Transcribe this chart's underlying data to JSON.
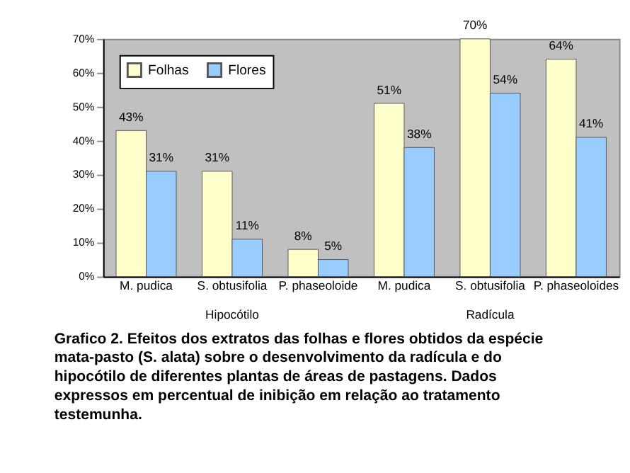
{
  "chart_data": {
    "type": "bar",
    "categories": [
      "M. pudica",
      "S. obtusifolia",
      "P. phaseoloide",
      "M. pudica",
      "S. obtusifolia",
      "P. phaseoloides"
    ],
    "series": [
      {
        "name": "Folhas",
        "color": "#ffffcc",
        "values": [
          43,
          31,
          8,
          51,
          70,
          64
        ]
      },
      {
        "name": "Flores",
        "color": "#99ccff",
        "values": [
          31,
          11,
          5,
          38,
          54,
          41
        ]
      }
    ],
    "ylim": [
      0,
      70
    ],
    "yticks": [
      {
        "value": 0,
        "label": "0%"
      },
      {
        "value": 10,
        "label": "10%"
      },
      {
        "value": 20,
        "label": "20%"
      },
      {
        "value": 30,
        "label": "30%"
      },
      {
        "value": 40,
        "label": "40%"
      },
      {
        "value": 50,
        "label": "50%"
      },
      {
        "value": 60,
        "label": "60%"
      },
      {
        "value": 70,
        "label": "70%"
      }
    ],
    "value_labels": [
      [
        "43%",
        "31%",
        "8%",
        "51%",
        "70%",
        "64%"
      ],
      [
        "31%",
        "11%",
        "5%",
        "38%",
        "54%",
        "41%"
      ]
    ],
    "grid": false,
    "legend": "top left",
    "annotations": [
      "Hipocótilo",
      "Radícula",
      "Grafico 2. Efeitos dos extratos das folhas e flores obtidos da espécie mata-pasto (S. alata) sobre o desenvolvimento da radícula e do hipocótilo de diferentes plantas de áreas de pastagens. Dados expressos em percentual de inibição em relação ao tratamento testemunha."
    ]
  }
}
